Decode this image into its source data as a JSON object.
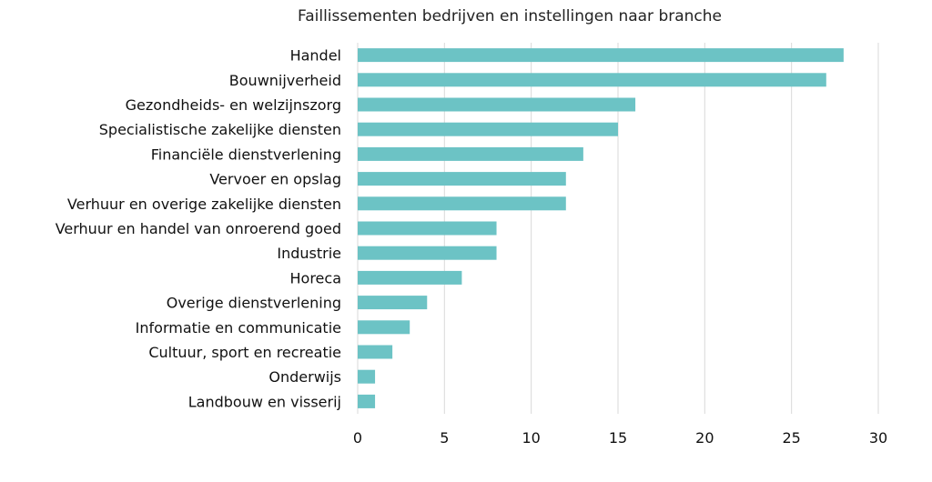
{
  "chart_data": {
    "type": "bar",
    "orientation": "horizontal",
    "title": "Faillissementen bedrijven en instellingen naar branche",
    "xlabel": "",
    "ylabel": "",
    "xlim": [
      0,
      30
    ],
    "x_ticks": [
      0,
      5,
      10,
      15,
      20,
      25,
      30
    ],
    "grid": "vertical",
    "bar_color": "#6cc3c5",
    "categories": [
      "Handel",
      "Bouwnijverheid",
      "Gezondheids- en welzijnszorg",
      "Specialistische zakelijke diensten",
      "Financiële dienstverlening",
      "Vervoer en opslag",
      "Verhuur en overige zakelijke diensten",
      "Verhuur en handel van onroerend goed",
      "Industrie",
      "Horeca",
      "Overige dienstverlening",
      "Informatie en communicatie",
      "Cultuur, sport en recreatie",
      "Onderwijs",
      "Landbouw en visserij"
    ],
    "values": [
      28,
      27,
      16,
      15,
      13,
      12,
      12,
      8,
      8,
      6,
      4,
      3,
      2,
      1,
      1
    ]
  }
}
